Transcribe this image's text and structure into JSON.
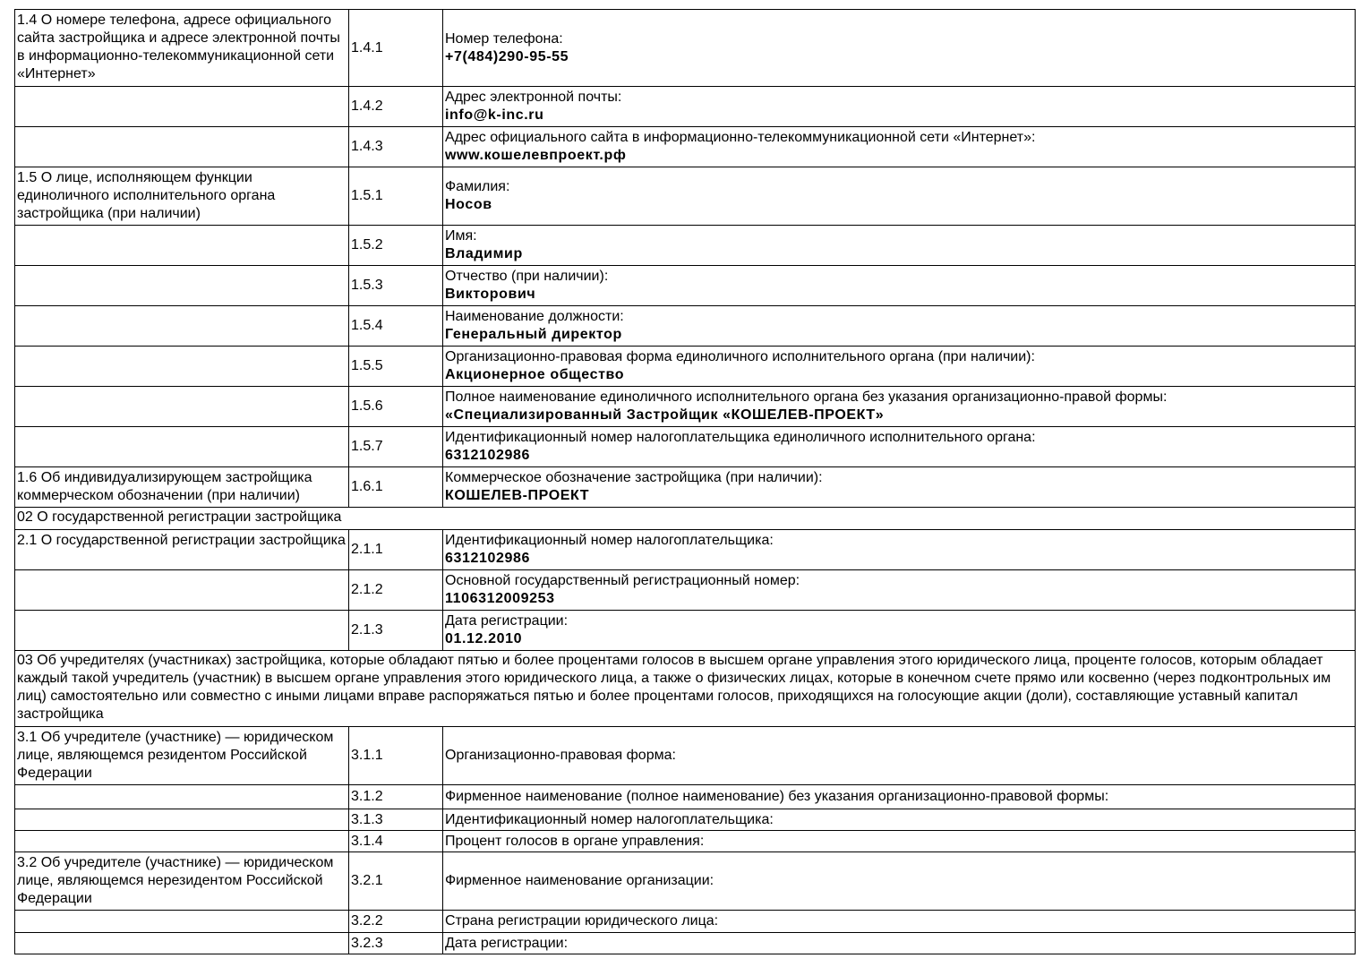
{
  "rows": [
    {
      "type": "item",
      "section": "1.4 О номере телефона, адресе официального сайта застройщика и адресе электронной почты в информационно-телекоммуникационной сети «Интернет»",
      "code": "1.4.1",
      "label": "Номер телефона:",
      "value": "+7(484)290-95-55"
    },
    {
      "type": "item",
      "section": "",
      "code": "1.4.2",
      "label": "Адрес электронной почты:",
      "value": "info@k-inc.ru"
    },
    {
      "type": "item",
      "section": "",
      "code": "1.4.3",
      "label": "Адрес официального сайта в информационно-телекоммуникационной сети «Интернет»:",
      "value": "www.кошелевпроект.рф"
    },
    {
      "type": "item",
      "section": "1.5 О лице, исполняющем функции единоличного исполнительного органа застройщика (при наличии)",
      "code": "1.5.1",
      "label": "Фамилия:",
      "value": "Носов"
    },
    {
      "type": "item",
      "section": "",
      "code": "1.5.2",
      "label": "Имя:",
      "value": "Владимир"
    },
    {
      "type": "item",
      "section": "",
      "code": "1.5.3",
      "label": "Отчество (при наличии):",
      "value": "Викторович"
    },
    {
      "type": "item",
      "section": "",
      "code": "1.5.4",
      "label": "Наименование должности:",
      "value": "Генеральный директор"
    },
    {
      "type": "item",
      "section": "",
      "code": "1.5.5",
      "label": "Организационно-правовая форма единоличного исполнительного органа (при наличии):",
      "value": "Акционерное общество"
    },
    {
      "type": "item",
      "section": "",
      "code": "1.5.6",
      "label": "Полное наименование единоличного исполнительного органа без указания организационно-правой формы:",
      "value": "«Специализированный Застройщик «КОШЕЛЕВ-ПРОЕКТ»"
    },
    {
      "type": "item",
      "section": "",
      "code": "1.5.7",
      "label": "Идентификационный номер налогоплательщика единоличного исполнительного органа:",
      "value": "6312102986"
    },
    {
      "type": "item",
      "section": "1.6 Об индивидуализирующем застройщика коммерческом обозначении (при наличии)",
      "code": "1.6.1",
      "label": "Коммерческое обозначение застройщика (при наличии):",
      "value": "КОШЕЛЕВ-ПРОЕКТ"
    },
    {
      "type": "header",
      "text": "02 О государственной регистрации застройщика"
    },
    {
      "type": "item",
      "section": "2.1 О государственной регистрации застройщика",
      "code": "2.1.1",
      "label": "Идентификационный номер налогоплательщика:",
      "value": "6312102986"
    },
    {
      "type": "item",
      "section": "",
      "code": "2.1.2",
      "label": "Основной государственный регистрационный номер:",
      "value": "1106312009253"
    },
    {
      "type": "item",
      "section": "",
      "code": "2.1.3",
      "label": "Дата регистрации:",
      "value": "01.12.2010"
    },
    {
      "type": "header",
      "text": "03 Об учредителях (участниках) застройщика, которые обладают пятью и более процентами голосов в высшем органе управления этого юридического лица, проценте голосов, которым обладает каждый такой учредитель (участник) в высшем органе управления этого юридического лица, а также о физических лицах, которые в конечном счете прямо или косвенно (через подконтрольных им лиц) самостоятельно или совместно с иными лицами вправе распоряжаться пятью и более процентами голосов, приходящихся на голосующие акции (доли), составляющие уставный капитал застройщика"
    },
    {
      "type": "item",
      "section": "3.1 Об учредителе (участнике) — юридическом лице, являющемся резидентом Российской Федерации",
      "code": "3.1.1",
      "label": "Организационно-правовая форма:",
      "value": ""
    },
    {
      "type": "item",
      "section": "",
      "code": "3.1.2",
      "label": "Фирменное наименование (полное наименование) без указания организационно-правовой формы:",
      "value": ""
    },
    {
      "type": "item",
      "section": "",
      "code": "3.1.3",
      "label": "Идентификационный номер налогоплательщика:",
      "value": ""
    },
    {
      "type": "item",
      "section": "",
      "code": "3.1.4",
      "label": "Процент голосов в органе управления:",
      "value": ""
    },
    {
      "type": "item",
      "section": "3.2 Об учредителе (участнике) — юридическом лице, являющемся нерезидентом Российской Федерации",
      "code": "3.2.1",
      "label": "Фирменное наименование организации:",
      "value": ""
    },
    {
      "type": "item",
      "section": "",
      "code": "3.2.2",
      "label": "Страна регистрации юридического лица:",
      "value": ""
    },
    {
      "type": "item",
      "section": "",
      "code": "3.2.3",
      "label": "Дата регистрации:",
      "value": ""
    }
  ]
}
